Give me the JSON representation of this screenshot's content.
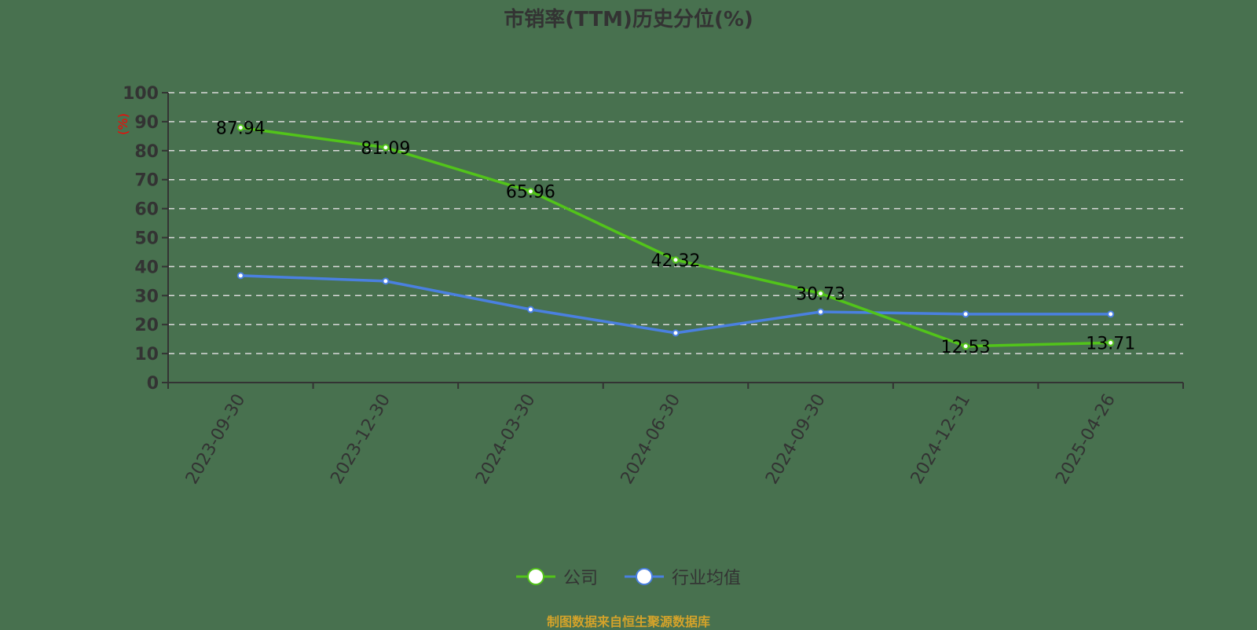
{
  "title": "市销率(TTM)历史分位(%)",
  "source_note": "制图数据来自恒生聚源数据库",
  "colors": {
    "background": "#48714f",
    "company": "#52c41a",
    "industry": "#4a80e0",
    "axis": "#333333",
    "grid": "#d9d9d9",
    "unit_label": "#ff0000",
    "source_note": "#d4a32a"
  },
  "chart_data": {
    "type": "line",
    "title": "市销率(TTM)历史分位(%)",
    "xlabel": "",
    "ylabel": "(%)",
    "ylim": [
      0,
      100
    ],
    "yticks": [
      0,
      10,
      20,
      30,
      40,
      50,
      60,
      70,
      80,
      90,
      100
    ],
    "grid": true,
    "legend_position": "bottom",
    "categories": [
      "2023-09-30",
      "2023-12-30",
      "2024-03-30",
      "2024-06-30",
      "2024-09-30",
      "2024-12-31",
      "2025-04-26"
    ],
    "series": [
      {
        "name": "公司",
        "color": "#52c41a",
        "values": [
          87.94,
          81.09,
          65.96,
          42.32,
          30.73,
          12.53,
          13.71
        ],
        "show_labels": true
      },
      {
        "name": "行业均值",
        "color": "#4a80e0",
        "values": [
          36.9,
          35.0,
          25.2,
          17.1,
          24.4,
          23.6,
          23.6
        ],
        "show_labels": false
      }
    ]
  },
  "legend": [
    {
      "label": "公司",
      "color": "#52c41a"
    },
    {
      "label": "行业均值",
      "color": "#4a80e0"
    }
  ]
}
